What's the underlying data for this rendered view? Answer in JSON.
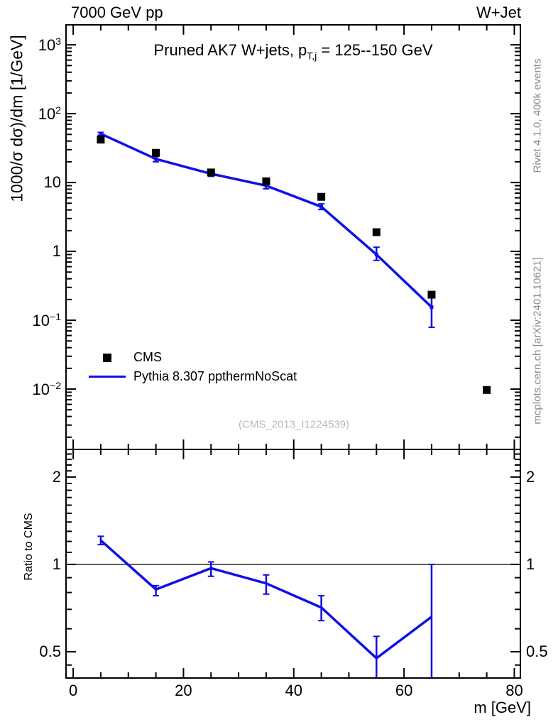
{
  "header": {
    "left": "7000 GeV pp",
    "right": "W+Jet"
  },
  "title": {
    "pre": "Pruned AK7 W+jets, p",
    "sub": "T,j",
    "post": " = 125--150 GeV"
  },
  "axis_labels": {
    "y_main": "1000/σ  dσ)/dm [1/GeV]",
    "y_ratio": "Ratio to CMS",
    "x": "m [GeV]"
  },
  "legend": [
    {
      "label": "CMS",
      "marker": "square",
      "color": "#000000"
    },
    {
      "label": "Pythia 8.307 ppthermNoScat",
      "marker": "line",
      "color": "#0f0fe6"
    }
  ],
  "watermark": "(CMS_2013_I1224539)",
  "side_notes": {
    "top": "Rivet 4.1.0,  400k events",
    "bottom": "mcplots.cern.ch [arXiv:2401.10621]"
  },
  "colors": {
    "mc_blue": "#0f0fe6",
    "data_black": "#000000",
    "frame": "#000000",
    "note_gray": "#8c8c8c",
    "watermark_gray": "#b9b9b9"
  },
  "chart_data": [
    {
      "type": "scatter",
      "panel": "main",
      "title": "Pruned AK7 W+jets, p_T,j = 125--150 GeV",
      "xlabel": "m [GeV]",
      "ylabel": "1000/σ dσ)/dm [1/GeV]",
      "ylog": true,
      "xlim": [
        -1.3,
        81.1
      ],
      "ylim": [
        0.00133,
        1950
      ],
      "bin_width": 10,
      "x": [
        5,
        15,
        25,
        35,
        45,
        55,
        65,
        75
      ],
      "series": [
        {
          "name": "CMS",
          "style": "points",
          "marker": "square",
          "color": "#000000",
          "y": [
            42,
            27,
            14,
            10.4,
            6.2,
            1.9,
            0.235,
            0.0097
          ]
        },
        {
          "name": "Pythia 8.307 ppthermNoScat",
          "style": "line+markers",
          "color": "#0f0fe6",
          "y": [
            51,
            22,
            13.4,
            9.0,
            4.45,
            0.9,
            0.155,
            null
          ],
          "y_lo": [
            48.5,
            20.0,
            12.3,
            8.1,
            4.05,
            0.74,
            0.079,
            null
          ],
          "y_hi": [
            53.5,
            24.0,
            14.4,
            10.0,
            4.9,
            1.15,
            0.215,
            null
          ]
        }
      ],
      "yticks": [
        {
          "v": 1000,
          "base": "10",
          "exp": "3"
        },
        {
          "v": 100,
          "base": "10",
          "exp": "2"
        },
        {
          "v": 10,
          "base": "10",
          "exp": ""
        },
        {
          "v": 1,
          "base": "1",
          "exp": ""
        },
        {
          "v": 0.1,
          "base": "10",
          "exp": "−1"
        },
        {
          "v": 0.01,
          "base": "10",
          "exp": "−2"
        }
      ],
      "xticks": [
        {
          "v": 0,
          "label": "0"
        },
        {
          "v": 20,
          "label": "20"
        },
        {
          "v": 40,
          "label": "40"
        },
        {
          "v": 60,
          "label": "60"
        },
        {
          "v": 80,
          "label": "80"
        }
      ],
      "xtick_minor_step": 5,
      "legend_pos": "bottom-left",
      "grid": false
    },
    {
      "type": "line",
      "panel": "ratio",
      "ylabel": "Ratio to CMS",
      "xlabel": "m [GeV]",
      "ylog": true,
      "xlim": [
        -1.3,
        81.1
      ],
      "ylim": [
        0.406,
        2.49
      ],
      "ref_line": 1,
      "x": [
        5,
        15,
        25,
        35,
        45,
        55,
        65
      ],
      "y": [
        1.21,
        0.82,
        0.97,
        0.86,
        0.71,
        0.475,
        0.66
      ],
      "y_lo": [
        1.17,
        0.78,
        0.91,
        0.79,
        0.64,
        0.28,
        0.28
      ],
      "y_hi": [
        1.25,
        0.845,
        1.02,
        0.92,
        0.78,
        0.565,
        1.0
      ],
      "color": "#0f0fe6",
      "yticks": [
        {
          "v": 2,
          "label": "2"
        },
        {
          "v": 1,
          "label": "1"
        },
        {
          "v": 0.5,
          "label": "0.5"
        }
      ],
      "ytick_minors": [
        0.45,
        0.6,
        0.7,
        0.8,
        0.9,
        1.1,
        1.2,
        1.3,
        1.4,
        1.5,
        1.6,
        1.7,
        1.8,
        1.9,
        2.1,
        2.2,
        2.3,
        2.4
      ],
      "labels_both_sides": true
    }
  ]
}
